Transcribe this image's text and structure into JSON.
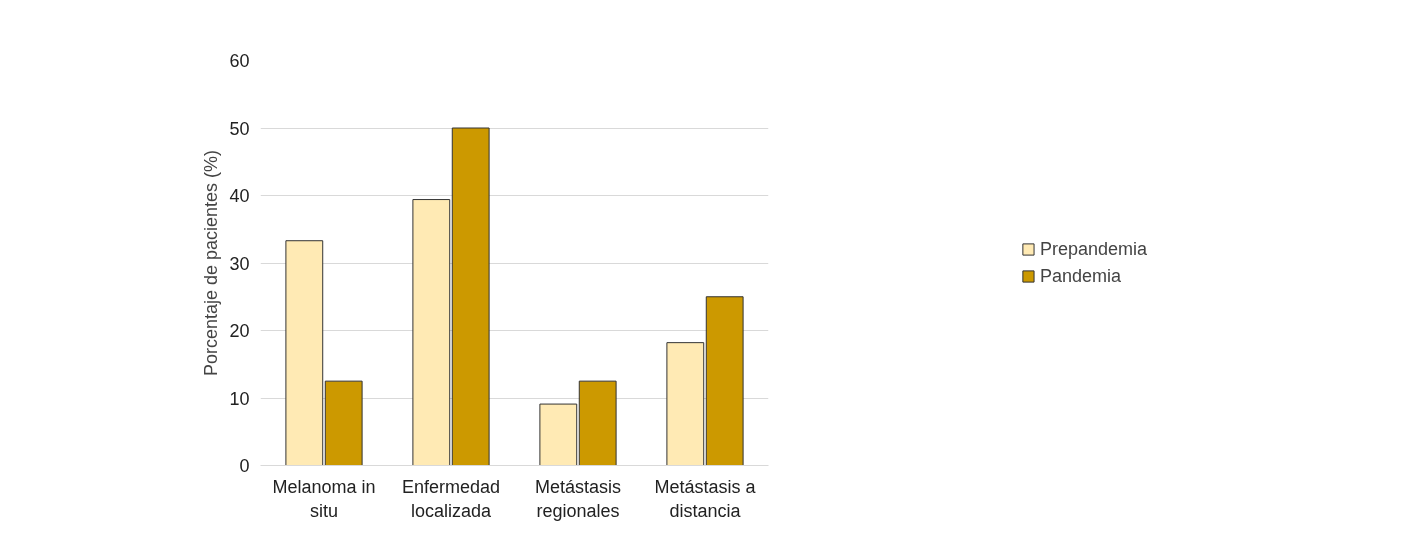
{
  "chart_data": {
    "type": "bar",
    "ylabel": "Porcentaje de pacientes (%)",
    "categories": [
      "Melanoma in situ",
      "Enfermedad localizada",
      "Metástasis regionales",
      "Metástasis a distancia"
    ],
    "series": [
      {
        "name": "Prepandemia",
        "color": "#ffeab4",
        "values": [
          33.3,
          39.4,
          9.1,
          18.2
        ]
      },
      {
        "name": "Pandemia",
        "color": "#cc9900",
        "values": [
          12.5,
          50,
          12.5,
          25
        ]
      }
    ],
    "ylim": [
      0,
      60
    ],
    "yticks": [
      0,
      10,
      20,
      30,
      40,
      50,
      60
    ],
    "grid": "y",
    "legend": "right"
  }
}
